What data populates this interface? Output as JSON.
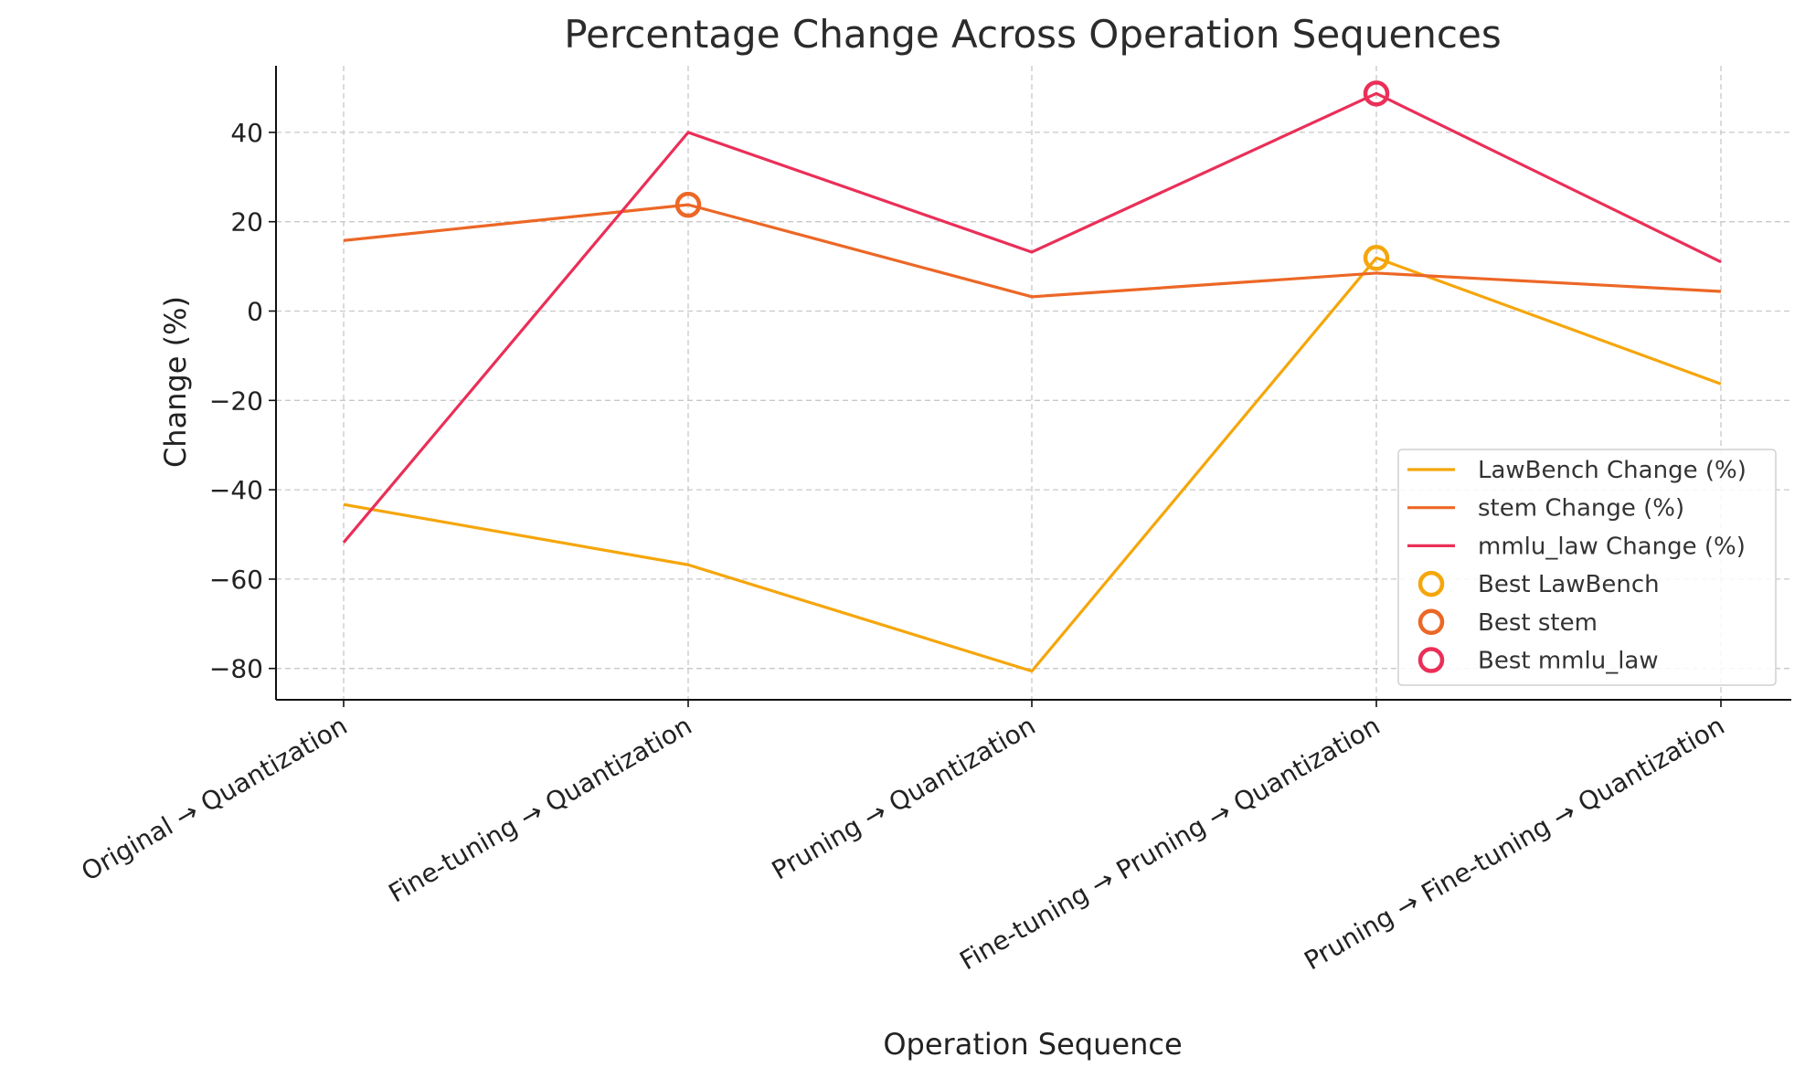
{
  "chart_data": {
    "type": "line",
    "title": "Percentage Change Across Operation Sequences",
    "xlabel": "Operation Sequence",
    "ylabel": "Change (%)",
    "categories": [
      "Original → Quantization",
      "Fine-tuning → Quantization",
      "Pruning → Quantization",
      "Fine-tuning → Pruning → Quantization",
      "Pruning → Fine-tuning → Quantization"
    ],
    "ylim": [
      -87,
      55
    ],
    "yticks": [
      -80,
      -60,
      -40,
      -20,
      0,
      20,
      40
    ],
    "ytick_labels": [
      "−80",
      "−60",
      "−40",
      "−20",
      "0",
      "20",
      "40"
    ],
    "grid": true,
    "legend_position": "lower-right",
    "series": [
      {
        "name": "LawBench Change (%)",
        "color": "#f5a60c",
        "values": [
          -43.3,
          -56.8,
          -80.6,
          11.9,
          -16.3
        ]
      },
      {
        "name": "stem Change (%)",
        "color": "#ec6726",
        "values": [
          15.8,
          23.8,
          3.2,
          8.5,
          4.4
        ]
      },
      {
        "name": "mmlu_law Change (%)",
        "color": "#ea2f58",
        "values": [
          -51.8,
          40.0,
          13.2,
          48.7,
          11.0
        ]
      }
    ],
    "best_markers": [
      {
        "name": "Best LawBench",
        "color": "#f5a60c",
        "category_index": 3,
        "value": 11.9
      },
      {
        "name": "Best stem",
        "color": "#ec6726",
        "category_index": 1,
        "value": 23.8
      },
      {
        "name": "Best mmlu_law",
        "color": "#ea2f58",
        "category_index": 3,
        "value": 48.7
      }
    ]
  }
}
